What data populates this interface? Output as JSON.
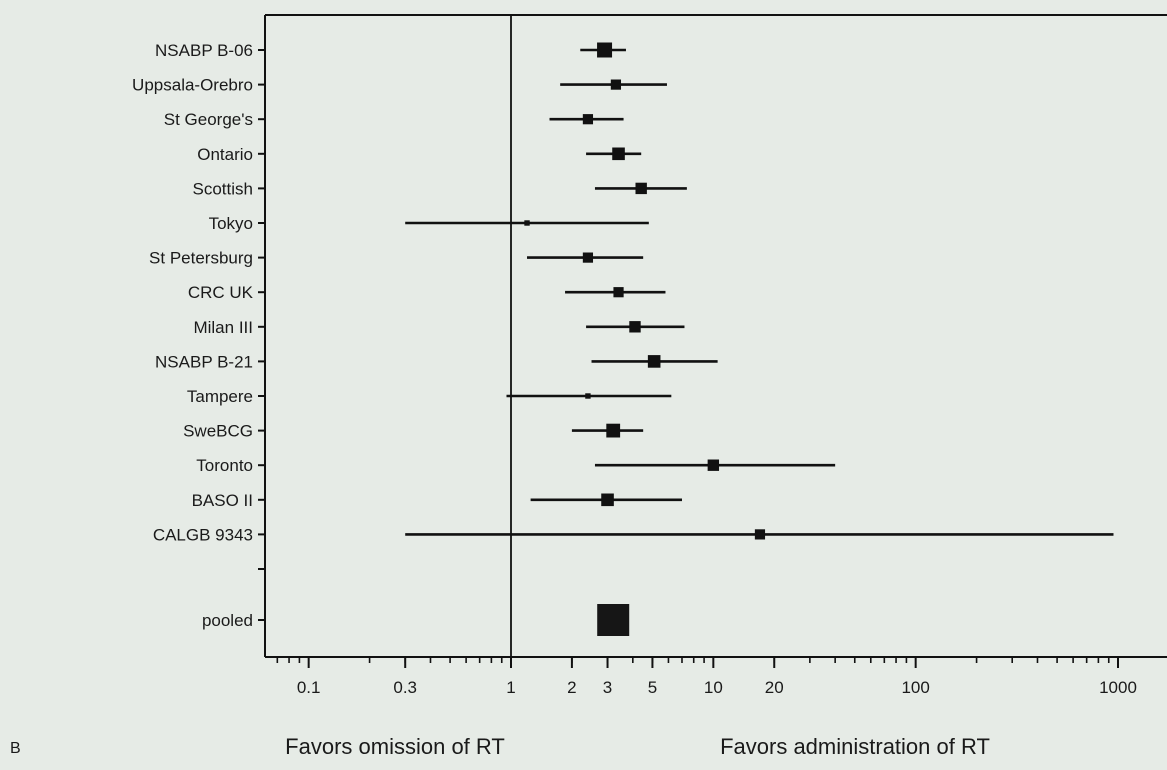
{
  "panel_label": "B",
  "favor_left": "Favors omission of RT",
  "favor_right": "Favors administration of RT",
  "chart_data": {
    "type": "forest",
    "x_scale": "log",
    "xlim": [
      0.05,
      1200
    ],
    "reference_line": 1,
    "x_ticks": [
      {
        "value": 0.1,
        "label": "0.1"
      },
      {
        "value": 0.3,
        "label": "0.3"
      },
      {
        "value": 1,
        "label": "1"
      },
      {
        "value": 2,
        "label": "2"
      },
      {
        "value": 3,
        "label": "3"
      },
      {
        "value": 5,
        "label": "5"
      },
      {
        "value": 10,
        "label": "10"
      },
      {
        "value": 20,
        "label": "20"
      },
      {
        "value": 100,
        "label": "100"
      },
      {
        "value": 1000,
        "label": "1000"
      }
    ],
    "studies": [
      {
        "label": "NSABP B-06",
        "estimate": 2.9,
        "lower": 2.2,
        "upper": 3.7,
        "weight": 5
      },
      {
        "label": "Uppsala-Orebro",
        "estimate": 3.3,
        "lower": 1.75,
        "upper": 5.9,
        "weight": 3
      },
      {
        "label": "St George's",
        "estimate": 2.4,
        "lower": 1.55,
        "upper": 3.6,
        "weight": 3
      },
      {
        "label": "Ontario",
        "estimate": 3.4,
        "lower": 2.35,
        "upper": 4.4,
        "weight": 4
      },
      {
        "label": "Scottish",
        "estimate": 4.4,
        "lower": 2.6,
        "upper": 7.4,
        "weight": 3.5
      },
      {
        "label": "Tokyo",
        "estimate": 1.2,
        "lower": 0.3,
        "upper": 4.8,
        "weight": 1
      },
      {
        "label": "St Petersburg",
        "estimate": 2.4,
        "lower": 1.2,
        "upper": 4.5,
        "weight": 3
      },
      {
        "label": "CRC UK",
        "estimate": 3.4,
        "lower": 1.85,
        "upper": 5.8,
        "weight": 3
      },
      {
        "label": "Milan III",
        "estimate": 4.1,
        "lower": 2.35,
        "upper": 7.2,
        "weight": 3.5
      },
      {
        "label": "NSABP B-21",
        "estimate": 5.1,
        "lower": 2.5,
        "upper": 10.5,
        "weight": 4
      },
      {
        "label": "Tampere",
        "estimate": 2.4,
        "lower": 0.95,
        "upper": 6.2,
        "weight": 1
      },
      {
        "label": "SweBCG",
        "estimate": 3.2,
        "lower": 2.0,
        "upper": 4.5,
        "weight": 4.5
      },
      {
        "label": "Toronto",
        "estimate": 10.0,
        "lower": 2.6,
        "upper": 40,
        "weight": 3.5
      },
      {
        "label": "BASO II",
        "estimate": 3.0,
        "lower": 1.25,
        "upper": 7.0,
        "weight": 4
      },
      {
        "label": "CALGB 9343",
        "estimate": 17,
        "lower": 0.3,
        "upper": 950,
        "weight": 3
      }
    ],
    "pooled": {
      "label": "pooled",
      "estimate": 3.2
    }
  }
}
